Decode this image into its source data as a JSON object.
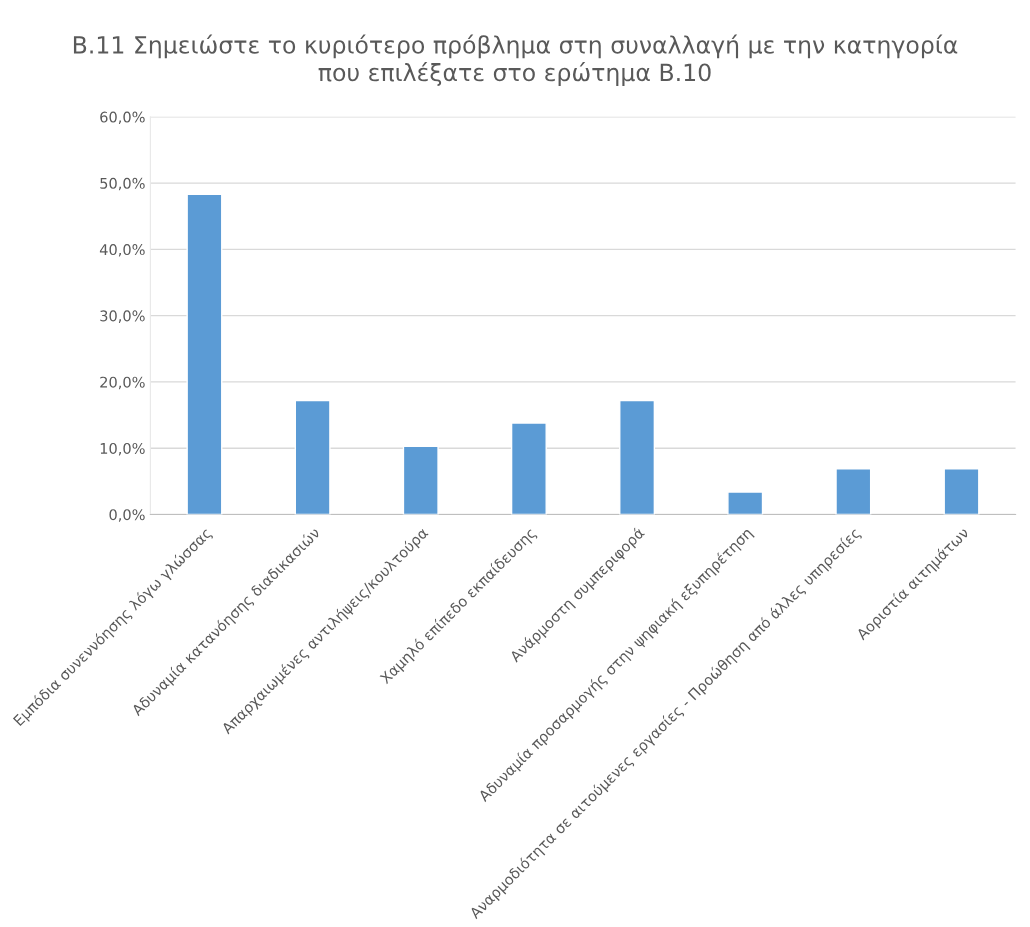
{
  "chart_data": {
    "type": "bar",
    "title": "B.11 Σημειώστε το κυριότερο πρόβλημα στη συναλλαγή με την κατηγορία\nπου επιλέξατε στο ερώτημα B.10",
    "categories": [
      "Εμπόδια συνεννόησης λόγω γλώσσας",
      "Αδυναμία κατανόησης διαδικασιών",
      "Απαρχαιωμένες αντιλήψεις/κουλτούρα",
      "Χαμηλό επίπεδο εκπαίδευσης",
      "Ανάρμοστη συμπεριφορά",
      "Αδυναμία προσαρμογής στην ψηφιακή εξυπηρέτηση",
      "Αναρμοδιότητα σε αιτούμενες εργασίες - Προώθηση από άλλες υπηρεσίες",
      "Αοριστία αιτημάτων"
    ],
    "values": [
      48.3,
      17.2,
      10.3,
      13.8,
      17.2,
      3.4,
      6.9,
      6.9
    ],
    "color": "#5b9bd5",
    "ylim": [
      0,
      60
    ],
    "yticks": [
      {
        "value": 0,
        "label": "0,0%"
      },
      {
        "value": 10,
        "label": "10,0%"
      },
      {
        "value": 20,
        "label": "20,0%"
      },
      {
        "value": 30,
        "label": "30,0%"
      },
      {
        "value": 40,
        "label": "40,0%"
      },
      {
        "value": 50,
        "label": "50,0%"
      },
      {
        "value": 60,
        "label": "60,0%"
      }
    ],
    "grid": "y"
  }
}
